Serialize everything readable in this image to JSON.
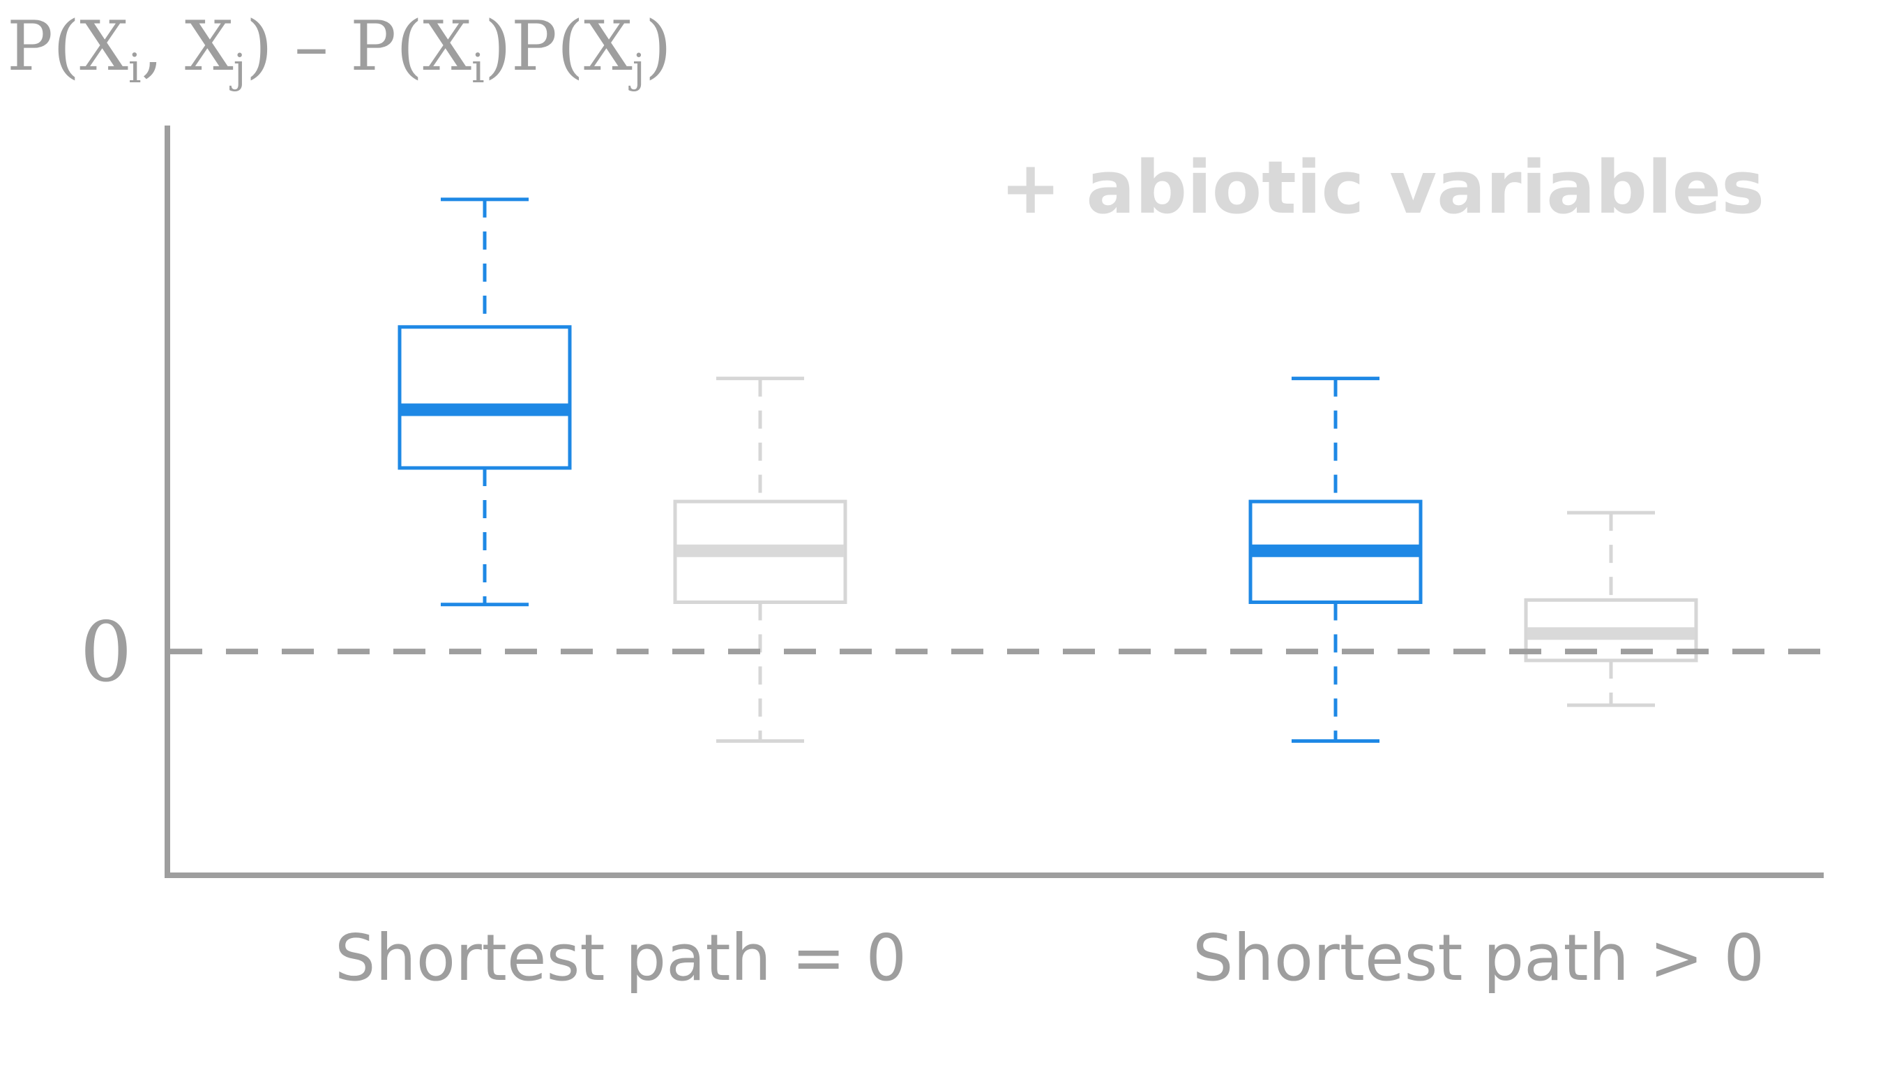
{
  "chart_data": {
    "type": "box",
    "ylabel": {
      "parts": [
        "P(X",
        "i",
        ", X",
        "j",
        ") – P(X",
        "i",
        ")P(X",
        "j",
        ")"
      ]
    },
    "zero_label": "0",
    "categories": [
      "Shortest path = 0",
      "Shortest path > 0"
    ],
    "annotation": "+ abiotic variables",
    "grid": false,
    "ylim": [
      -1.0,
      2.35
    ],
    "reference_line": 0,
    "series": [
      {
        "color": "#1e88e5",
        "median_color": "#1e88e5",
        "boxes": [
          {
            "whisker_low": 0.21,
            "q1": 0.82,
            "median": 1.08,
            "q3": 1.45,
            "whisker_high": 2.02
          },
          {
            "whisker_low": -0.4,
            "q1": 0.22,
            "median": 0.45,
            "q3": 0.67,
            "whisker_high": 1.22
          }
        ]
      },
      {
        "color": "#d6d6d6",
        "median_color": "#d9d9d9",
        "boxes": [
          {
            "whisker_low": -0.4,
            "q1": 0.22,
            "median": 0.45,
            "q3": 0.67,
            "whisker_high": 1.22
          },
          {
            "whisker_low": -0.24,
            "q1": -0.04,
            "median": 0.08,
            "q3": 0.23,
            "whisker_high": 0.62
          }
        ]
      }
    ]
  }
}
